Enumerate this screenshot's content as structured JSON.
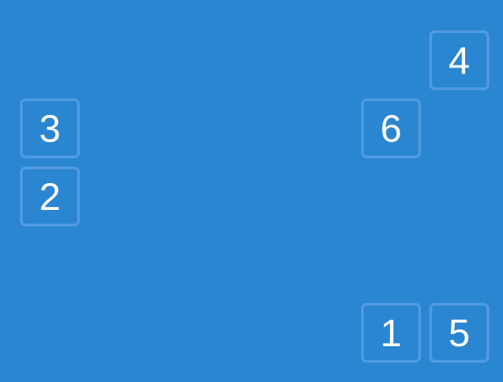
{
  "tiles": {
    "t1": "1",
    "t2": "2",
    "t3": "3",
    "t4": "4",
    "t5": "5",
    "t6": "6"
  },
  "colors": {
    "background": "#2b86d2",
    "tile_border": "#4f9be0",
    "text": "#ffffff"
  }
}
